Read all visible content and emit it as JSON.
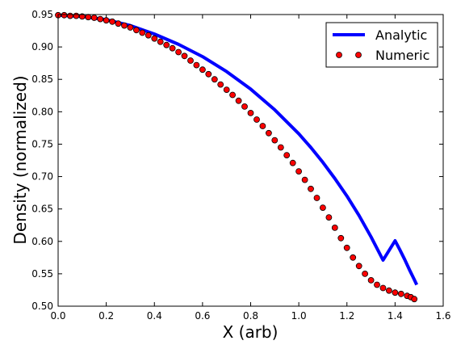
{
  "chart_data": {
    "type": "line",
    "title": "",
    "xlabel": "X (arb)",
    "ylabel": "Density (normalized)",
    "xlim": [
      0.0,
      1.6
    ],
    "ylim": [
      0.5,
      0.95
    ],
    "xticks": [
      "0.0",
      "0.2",
      "0.4",
      "0.6",
      "0.8",
      "1.0",
      "1.2",
      "1.4",
      "1.6"
    ],
    "yticks": [
      "0.50",
      "0.55",
      "0.60",
      "0.65",
      "0.70",
      "0.75",
      "0.80",
      "0.85",
      "0.90",
      "0.95"
    ],
    "grid": false,
    "legend_position": "top-right",
    "series": [
      {
        "name": "Analytic",
        "style": "line",
        "color": "#0000ff",
        "x": [
          0.0,
          0.1,
          0.2,
          0.3,
          0.4,
          0.5,
          0.6,
          0.7,
          0.8,
          0.9,
          1.0,
          1.05,
          1.1,
          1.15,
          1.2,
          1.25,
          1.3,
          1.35,
          1.4,
          1.42,
          1.44,
          1.46,
          1.48,
          1.49
        ],
        "y": [
          0.949,
          0.947,
          0.942,
          0.933,
          0.92,
          0.904,
          0.885,
          0.862,
          0.835,
          0.803,
          0.766,
          0.745,
          0.722,
          0.697,
          0.67,
          0.64,
          0.607,
          0.571,
          0.601,
          0.587,
          0.572,
          0.556,
          0.541,
          0.533
        ]
      },
      {
        "name": "Numeric",
        "style": "markers",
        "color": "#ff0000",
        "edge_color": "#000000",
        "x": [
          0.0,
          0.025,
          0.05,
          0.075,
          0.1,
          0.125,
          0.15,
          0.175,
          0.2,
          0.225,
          0.25,
          0.275,
          0.3,
          0.325,
          0.35,
          0.375,
          0.4,
          0.425,
          0.45,
          0.475,
          0.5,
          0.525,
          0.55,
          0.575,
          0.6,
          0.625,
          0.65,
          0.675,
          0.7,
          0.725,
          0.75,
          0.775,
          0.8,
          0.825,
          0.85,
          0.875,
          0.9,
          0.925,
          0.95,
          0.975,
          1.0,
          1.025,
          1.05,
          1.075,
          1.1,
          1.125,
          1.15,
          1.175,
          1.2,
          1.225,
          1.25,
          1.275,
          1.3,
          1.325,
          1.35,
          1.375,
          1.4,
          1.425,
          1.45,
          1.465,
          1.48
        ],
        "y": [
          0.949,
          0.949,
          0.948,
          0.948,
          0.947,
          0.946,
          0.945,
          0.943,
          0.941,
          0.939,
          0.936,
          0.933,
          0.93,
          0.926,
          0.922,
          0.918,
          0.913,
          0.908,
          0.903,
          0.898,
          0.892,
          0.886,
          0.879,
          0.872,
          0.865,
          0.858,
          0.85,
          0.842,
          0.834,
          0.826,
          0.817,
          0.808,
          0.798,
          0.788,
          0.778,
          0.767,
          0.756,
          0.745,
          0.733,
          0.721,
          0.708,
          0.695,
          0.681,
          0.667,
          0.652,
          0.637,
          0.621,
          0.605,
          0.59,
          0.575,
          0.562,
          0.55,
          0.54,
          0.533,
          0.528,
          0.524,
          0.521,
          0.519,
          0.516,
          0.514,
          0.511
        ]
      }
    ]
  }
}
